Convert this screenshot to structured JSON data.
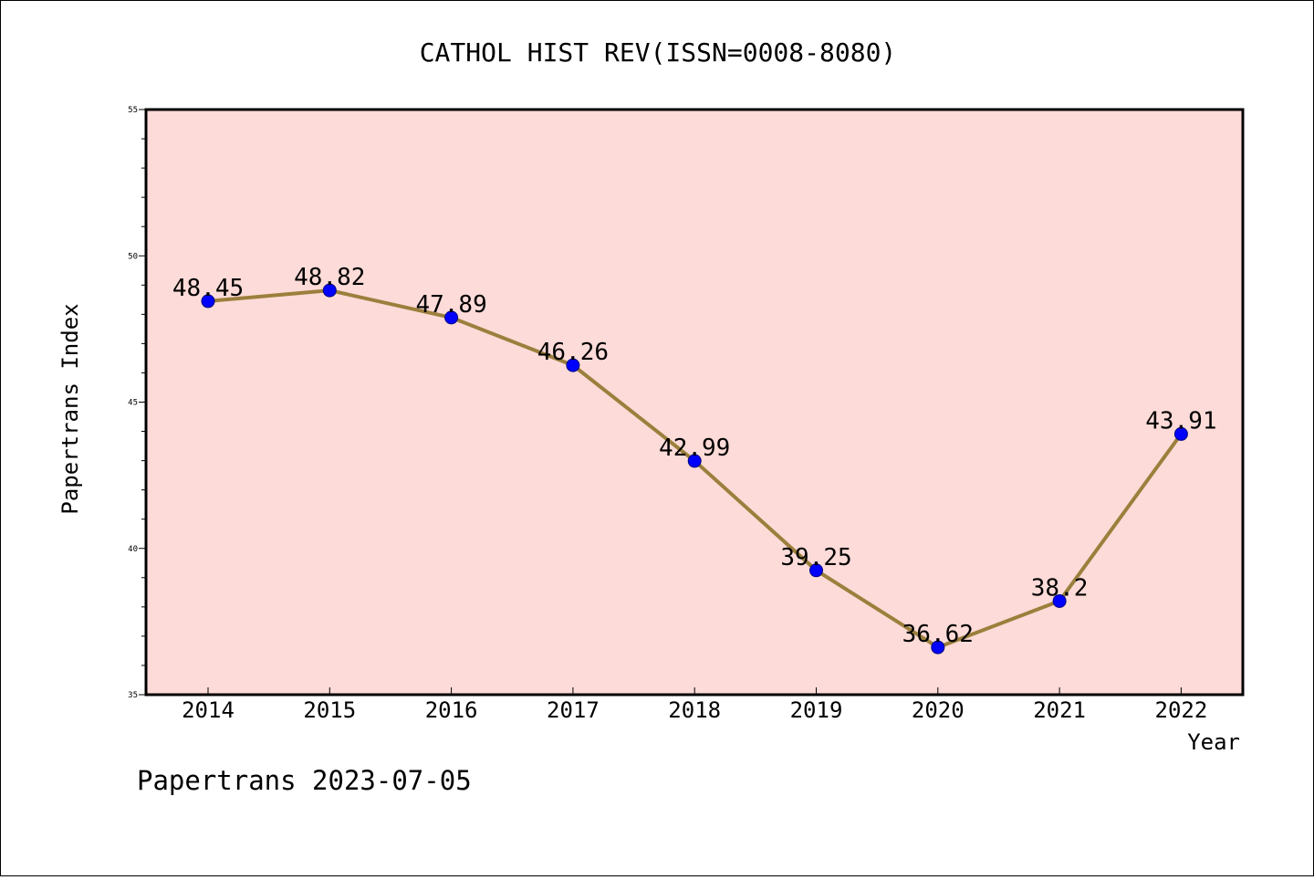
{
  "chart_data": {
    "type": "line",
    "title": "CATHOL HIST REV(ISSN=0008-8080)",
    "xlabel": "Year",
    "ylabel": "Papertrans Index",
    "categories": [
      "2014",
      "2015",
      "2016",
      "2017",
      "2018",
      "2019",
      "2020",
      "2021",
      "2022"
    ],
    "series": [
      {
        "values": [
          48.45,
          48.82,
          47.89,
          46.26,
          42.99,
          39.25,
          36.62,
          38.2,
          43.91
        ],
        "data_labels": [
          "48.45",
          "48.82",
          "47.89",
          "46.26",
          "42.99",
          "39.25",
          "36.62",
          "38.2",
          "43.91"
        ]
      }
    ],
    "ylim": [
      35,
      55
    ],
    "yticks": [
      "35",
      "40",
      "45",
      "50",
      "55"
    ],
    "grid": false,
    "legend": "none"
  },
  "footer": {
    "text": "Papertrans 2023-07-05"
  },
  "colors": {
    "plot_background": "#fddbd8",
    "line": "#9b7f3c",
    "marker": "#0000ff"
  }
}
